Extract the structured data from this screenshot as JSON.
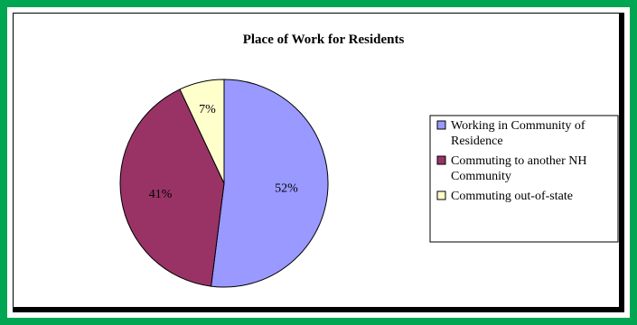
{
  "chart_data": {
    "type": "pie",
    "title": "Place of Work for Residents",
    "slices": [
      {
        "label": "Working in Community of Residence",
        "value": 52,
        "display": "52%",
        "color": "#9999ff",
        "legend_lines": [
          "Working in Community of",
          "Residence"
        ]
      },
      {
        "label": "Commuting to another NH Community",
        "value": 41,
        "display": "41%",
        "color": "#993366",
        "legend_lines": [
          "Commuting to another NH",
          "Community"
        ]
      },
      {
        "label": "Commuting out-of-state",
        "value": 7,
        "display": "7%",
        "color": "#ffffcc",
        "legend_lines": [
          "Commuting out-of-state"
        ]
      }
    ],
    "legend_position": "right"
  }
}
